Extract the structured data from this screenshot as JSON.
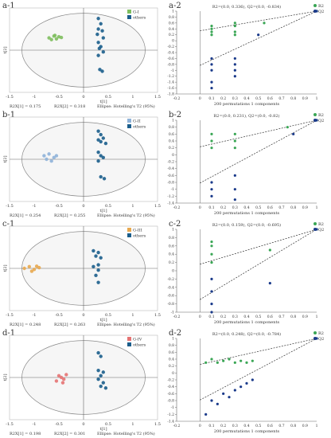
{
  "colors": {
    "others": "#1b5e8c",
    "r2": "#3aa655",
    "q2": "#1a3a8a",
    "axis": "#666666",
    "ellipse": "#888888",
    "text": "#333333"
  },
  "panels": [
    {
      "id": "a",
      "score": {
        "label": "a-1",
        "legend": [
          {
            "name": "G-I",
            "color": "#7fbf5f"
          },
          {
            "name": "others",
            "color": "#1b5e8c"
          }
        ],
        "xlabel": "t[1]",
        "ylabel": "t[2]",
        "xticks": [
          "-1.5",
          "-1",
          "-0.5",
          "0",
          "0.5",
          "1",
          "1.5"
        ],
        "stats": [
          "R2X[1] = 0.175",
          "R2X[2] = 0.318",
          "Ellipse: Hotelling's T2 (95%)"
        ],
        "group_color": "#7fbf5f"
      },
      "perm": {
        "label": "a-2",
        "title": "R2=(0.0, 0.336), Q2=(0.0, -0.834)",
        "xlabel": "200 permutations 1 components",
        "xticks": [
          "-0.2",
          "0",
          "0.1",
          "0.2",
          "0.3",
          "0.4",
          "0.5",
          "0.6",
          "0.7",
          "0.8",
          "0.9",
          "1"
        ],
        "yticks": [
          "1",
          "0.8",
          "0.6",
          "0.4",
          "0.2",
          "0",
          "-0.2",
          "-0.4",
          "-0.6",
          "-0.8",
          "-1",
          "-1.2",
          "-1.4",
          "-1.6",
          "-1.8"
        ],
        "legend": [
          "R2",
          "Q2"
        ]
      }
    },
    {
      "id": "b",
      "score": {
        "label": "b-1",
        "legend": [
          {
            "name": "G-II",
            "color": "#8fb3d9"
          },
          {
            "name": "others",
            "color": "#1b5e8c"
          }
        ],
        "xlabel": "t[1]",
        "ylabel": "t[2]",
        "xticks": [
          "-1.5",
          "-1",
          "-0.5",
          "0",
          "0.5",
          "1",
          "1.5"
        ],
        "stats": [
          "R2X[1] = 0.254",
          "R2X[2] = 0.255",
          "Ellipse: Hotelling's T2 (95%)"
        ],
        "group_color": "#8fb3d9"
      },
      "perm": {
        "label": "b-2",
        "title": "R2=(0.0, 0.231), Q2=(0.0, -0.82)",
        "xlabel": "200 permutations 1 components",
        "xticks": [
          "-0.2",
          "0",
          "0.1",
          "0.2",
          "0.3",
          "0.4",
          "0.5",
          "0.6",
          "0.7",
          "0.8",
          "0.9",
          "1"
        ],
        "yticks": [
          "1",
          "0.8",
          "0.6",
          "0.4",
          "0.2",
          "0",
          "-0.2",
          "-0.4",
          "-0.6",
          "-0.8",
          "-1",
          "-1.2",
          "-1.4"
        ],
        "legend": [
          "R2",
          "Q2"
        ]
      }
    },
    {
      "id": "c",
      "score": {
        "label": "c-1",
        "legend": [
          {
            "name": "G-III",
            "color": "#e8a94f"
          },
          {
            "name": "others",
            "color": "#1b5e8c"
          }
        ],
        "xlabel": "t[1]",
        "ylabel": "t[2]",
        "xticks": [
          "-1.5",
          "-1",
          "-0.5",
          "0",
          "0.5",
          "1",
          "1.5"
        ],
        "stats": [
          "R2X[1] = 0.248",
          "R2X[2] = 0.263",
          "Ellipse: Hotelling's T2 (95%)"
        ],
        "group_color": "#e8a94f"
      },
      "perm": {
        "label": "c-2",
        "title": "R2=(0.0, 0.159), Q2=(0.0, -0.695)",
        "xlabel": "200 permutations 1 components",
        "xticks": [
          "-0.2",
          "0",
          "0.1",
          "0.2",
          "0.3",
          "0.4",
          "0.5",
          "0.6",
          "0.7",
          "0.8",
          "0.9",
          "1"
        ],
        "yticks": [
          "1",
          "0.8",
          "0.6",
          "0.4",
          "0.2",
          "0",
          "-0.2",
          "-0.4",
          "-0.6",
          "-0.8",
          "-1"
        ],
        "legend": [
          "R2",
          "Q2"
        ]
      }
    },
    {
      "id": "d",
      "score": {
        "label": "d-1",
        "legend": [
          {
            "name": "G-IV",
            "color": "#e57373"
          },
          {
            "name": "others",
            "color": "#1b5e8c"
          }
        ],
        "xlabel": "t[1]",
        "ylabel": "t[2]",
        "xticks": [
          "-1.5",
          "-1",
          "-0.5",
          "0",
          "0.5",
          "1",
          "1.5"
        ],
        "stats": [
          "R2X[1] = 0.198",
          "R2X[2] = 0.301",
          "Ellipse: Hotelling's T2 (95%)"
        ],
        "group_color": "#e57373"
      },
      "perm": {
        "label": "d-2",
        "title": "R2=(0.0, 0.248), Q2=(0.0, -0.784)",
        "xlabel": "200 permutations 1 components",
        "xticks": [
          "-0.2",
          "0",
          "0.1",
          "0.2",
          "0.3",
          "0.4",
          "0.5",
          "0.6",
          "0.7",
          "0.8",
          "0.9",
          "1"
        ],
        "yticks": [
          "1",
          "0.8",
          "0.6",
          "0.4",
          "0.2",
          "0",
          "-0.2",
          "-0.4",
          "-0.6",
          "-0.8",
          "-1",
          "-1.2",
          "-1.4"
        ],
        "legend": [
          "R2",
          "Q2"
        ]
      }
    }
  ],
  "chart_data": [
    {
      "type": "scatter",
      "panel": "a-1",
      "xlabel": "t[1]",
      "ylabel": "t[2]",
      "xlim": [
        -1.5,
        1.5
      ],
      "ylim": [
        -1.2,
        1.2
      ],
      "series": [
        {
          "name": "G-I",
          "points": [
            [
              -0.7,
              0.35
            ],
            [
              -0.6,
              0.4
            ],
            [
              -0.55,
              0.32
            ],
            [
              -0.5,
              0.38
            ],
            [
              -0.65,
              0.3
            ],
            [
              -0.45,
              0.36
            ],
            [
              -0.58,
              0.42
            ]
          ]
        },
        {
          "name": "others",
          "points": [
            [
              0.3,
              0.9
            ],
            [
              0.35,
              0.75
            ],
            [
              0.3,
              0.6
            ],
            [
              0.38,
              0.55
            ],
            [
              0.28,
              0.45
            ],
            [
              0.4,
              0.35
            ],
            [
              0.3,
              0.22
            ],
            [
              0.35,
              0.1
            ],
            [
              0.32,
              0.05
            ],
            [
              0.4,
              -0.05
            ],
            [
              0.3,
              -0.15
            ],
            [
              0.33,
              -0.55
            ],
            [
              0.38,
              -0.6
            ]
          ]
        }
      ],
      "ellipse": "Hotelling's T2 (95%)"
    },
    {
      "type": "scatter",
      "panel": "a-2",
      "xlabel": "200 permutations 1 components",
      "xlim": [
        -0.2,
        1
      ],
      "ylim": [
        -1.8,
        1
      ],
      "series": [
        {
          "name": "R2",
          "points": [
            [
              0.1,
              0.2
            ],
            [
              0.1,
              0.3
            ],
            [
              0.1,
              0.4
            ],
            [
              0.1,
              0.5
            ],
            [
              0.3,
              0.2
            ],
            [
              0.3,
              0.3
            ],
            [
              0.3,
              0.5
            ],
            [
              0.3,
              0.6
            ],
            [
              0.55,
              0.6
            ],
            [
              1,
              1
            ]
          ]
        },
        {
          "name": "Q2",
          "points": [
            [
              0.1,
              -1.4
            ],
            [
              0.1,
              -1.0
            ],
            [
              0.1,
              -0.8
            ],
            [
              0.1,
              -0.6
            ],
            [
              0.1,
              -1.6
            ],
            [
              0.3,
              -0.6
            ],
            [
              0.3,
              -0.8
            ],
            [
              0.3,
              -1.0
            ],
            [
              0.3,
              -1.2
            ],
            [
              0.5,
              0.2
            ],
            [
              1,
              1
            ]
          ]
        }
      ],
      "regression": {
        "R2": [
          0.0,
          0.336
        ],
        "Q2": [
          0.0,
          -0.834
        ]
      }
    },
    {
      "type": "scatter",
      "panel": "b-1",
      "xlabel": "t[1]",
      "ylabel": "t[2]",
      "xlim": [
        -1.5,
        1.5
      ],
      "ylim": [
        -1.2,
        1.2
      ],
      "series": [
        {
          "name": "G-II",
          "points": [
            [
              -0.8,
              0.1
            ],
            [
              -0.7,
              0.15
            ],
            [
              -0.6,
              0.05
            ],
            [
              -0.75,
              0.0
            ],
            [
              -0.65,
              -0.05
            ],
            [
              -0.55,
              0.1
            ]
          ]
        },
        {
          "name": "others",
          "points": [
            [
              0.3,
              0.8
            ],
            [
              0.35,
              0.7
            ],
            [
              0.4,
              0.6
            ],
            [
              0.3,
              0.55
            ],
            [
              0.35,
              0.5
            ],
            [
              0.45,
              0.45
            ],
            [
              0.3,
              0.2
            ],
            [
              0.35,
              0.1
            ],
            [
              0.4,
              0.05
            ],
            [
              0.3,
              -0.05
            ],
            [
              0.35,
              -0.5
            ],
            [
              0.42,
              -0.55
            ]
          ]
        }
      ],
      "ellipse": "Hotelling's T2 (95%)"
    },
    {
      "type": "scatter",
      "panel": "b-2",
      "xlabel": "200 permutations 1 components",
      "xlim": [
        -0.2,
        1
      ],
      "ylim": [
        -1.4,
        1
      ],
      "series": [
        {
          "name": "R2",
          "points": [
            [
              0.1,
              0.2
            ],
            [
              0.1,
              0.4
            ],
            [
              0.1,
              0.6
            ],
            [
              0.3,
              0.2
            ],
            [
              0.3,
              0.4
            ],
            [
              0.3,
              0.6
            ],
            [
              0.75,
              0.8
            ],
            [
              1,
              1
            ]
          ]
        },
        {
          "name": "Q2",
          "points": [
            [
              0.1,
              -1.2
            ],
            [
              0.1,
              -1.0
            ],
            [
              0.1,
              -0.8
            ],
            [
              0.3,
              -0.6
            ],
            [
              0.3,
              -1.0
            ],
            [
              0.3,
              -1.3
            ],
            [
              0.8,
              0.6
            ],
            [
              1,
              1
            ]
          ]
        }
      ],
      "regression": {
        "R2": [
          0.0,
          0.231
        ],
        "Q2": [
          0.0,
          -0.82
        ]
      }
    },
    {
      "type": "scatter",
      "panel": "c-1",
      "xlabel": "t[1]",
      "ylabel": "t[2]",
      "xlim": [
        -1.5,
        1.5
      ],
      "ylim": [
        -1.2,
        1.2
      ],
      "series": [
        {
          "name": "G-III",
          "points": [
            [
              -1.2,
              0.0
            ],
            [
              -1.1,
              0.05
            ],
            [
              -1.0,
              -0.03
            ],
            [
              -0.9,
              0.02
            ],
            [
              -1.05,
              -0.08
            ],
            [
              -0.95,
              0.06
            ]
          ]
        },
        {
          "name": "others",
          "points": [
            [
              0.2,
              0.5
            ],
            [
              0.3,
              0.45
            ],
            [
              0.25,
              0.35
            ],
            [
              0.35,
              0.3
            ],
            [
              0.3,
              0.1
            ],
            [
              0.2,
              0.05
            ],
            [
              0.3,
              -0.05
            ],
            [
              0.25,
              -0.2
            ],
            [
              0.3,
              -0.4
            ]
          ]
        }
      ],
      "ellipse": "Hotelling's T2 (95%)"
    },
    {
      "type": "scatter",
      "panel": "c-2",
      "xlabel": "200 permutations 1 components",
      "xlim": [
        -0.2,
        1
      ],
      "ylim": [
        -1,
        1
      ],
      "series": [
        {
          "name": "R2",
          "points": [
            [
              0.1,
              0.2
            ],
            [
              0.1,
              0.4
            ],
            [
              0.1,
              0.6
            ],
            [
              0.1,
              0.7
            ],
            [
              0.6,
              0.5
            ],
            [
              1,
              1
            ]
          ]
        },
        {
          "name": "Q2",
          "points": [
            [
              0.1,
              -0.2
            ],
            [
              0.1,
              -0.5
            ],
            [
              0.1,
              -0.8
            ],
            [
              0.1,
              -1.0
            ],
            [
              0.6,
              -0.3
            ],
            [
              1,
              1
            ]
          ]
        }
      ],
      "regression": {
        "R2": [
          0.0,
          0.159
        ],
        "Q2": [
          0.0,
          -0.695
        ]
      }
    },
    {
      "type": "scatter",
      "panel": "d-1",
      "xlabel": "t[1]",
      "ylabel": "t[2]",
      "xlim": [
        -1.5,
        1.5
      ],
      "ylim": [
        -1.2,
        1.2
      ],
      "series": [
        {
          "name": "G-IV",
          "points": [
            [
              -0.5,
              0.05
            ],
            [
              -0.45,
              0.0
            ],
            [
              -0.4,
              -0.05
            ],
            [
              -0.55,
              -0.1
            ],
            [
              -0.35,
              0.08
            ],
            [
              -0.42,
              -0.15
            ]
          ]
        },
        {
          "name": "others",
          "points": [
            [
              0.3,
              0.7
            ],
            [
              0.35,
              0.6
            ],
            [
              0.3,
              0.2
            ],
            [
              0.4,
              0.15
            ],
            [
              0.35,
              0.05
            ],
            [
              0.3,
              -0.05
            ],
            [
              0.4,
              -0.15
            ],
            [
              0.35,
              -0.25
            ],
            [
              0.45,
              -0.3
            ]
          ]
        }
      ],
      "ellipse": "Hotelling's T2 (95%)"
    },
    {
      "type": "scatter",
      "panel": "d-2",
      "xlabel": "200 permutations 1 components",
      "xlim": [
        -0.2,
        1
      ],
      "ylim": [
        -1.4,
        1
      ],
      "series": [
        {
          "name": "R2",
          "points": [
            [
              0.05,
              0.3
            ],
            [
              0.1,
              0.4
            ],
            [
              0.15,
              0.3
            ],
            [
              0.2,
              0.35
            ],
            [
              0.25,
              0.4
            ],
            [
              0.3,
              0.3
            ],
            [
              0.35,
              0.35
            ],
            [
              0.4,
              0.3
            ],
            [
              0.45,
              0.35
            ],
            [
              1,
              1
            ]
          ]
        },
        {
          "name": "Q2",
          "points": [
            [
              0.05,
              -1.2
            ],
            [
              0.1,
              -0.8
            ],
            [
              0.15,
              -0.9
            ],
            [
              0.2,
              -0.6
            ],
            [
              0.25,
              -0.7
            ],
            [
              0.3,
              -0.5
            ],
            [
              0.35,
              -0.4
            ],
            [
              0.4,
              -0.3
            ],
            [
              0.45,
              -0.2
            ],
            [
              1,
              1
            ]
          ]
        }
      ],
      "regression": {
        "R2": [
          0.0,
          0.248
        ],
        "Q2": [
          0.0,
          -0.784
        ]
      }
    }
  ]
}
